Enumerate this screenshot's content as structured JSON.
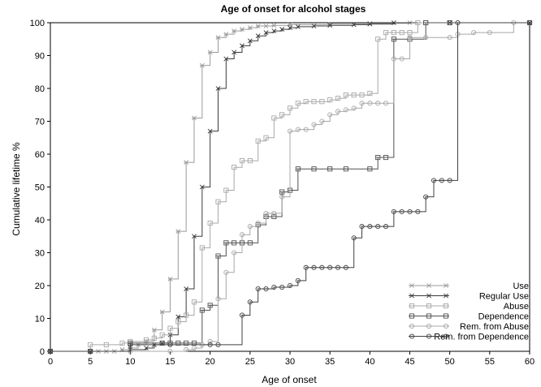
{
  "chart_data": {
    "type": "line",
    "step": true,
    "title": "Age of onset for alcohol stages",
    "xlabel": "Age of onset",
    "ylabel": "Cumulative lifetime %",
    "xlim": [
      0,
      60
    ],
    "ylim": [
      0,
      100
    ],
    "xticks": [
      0,
      5,
      10,
      15,
      20,
      25,
      30,
      35,
      40,
      45,
      50,
      55,
      60
    ],
    "yticks": [
      0,
      10,
      20,
      30,
      40,
      50,
      60,
      70,
      80,
      90,
      100
    ],
    "grid": false,
    "legend_position": "bottom-right",
    "series": [
      {
        "name": "Use",
        "marker": "star",
        "color": "#9a9a9a",
        "x": [
          0,
          5,
          6,
          7,
          8,
          9,
          10,
          11,
          12,
          13,
          14,
          15,
          16,
          17,
          18,
          19,
          20,
          21,
          22,
          23,
          24,
          25,
          26,
          27,
          28,
          30,
          35,
          40,
          45,
          50,
          60
        ],
        "y": [
          0,
          0,
          0,
          0,
          0,
          0.5,
          1,
          2,
          3,
          6.5,
          12,
          22,
          36.5,
          57.5,
          71,
          87,
          91,
          95.5,
          96.5,
          97.5,
          98,
          98.5,
          99,
          99,
          99.2,
          99.4,
          99.6,
          99.8,
          100,
          100,
          100
        ]
      },
      {
        "name": "Regular Use",
        "marker": "x",
        "color": "#3a3a3a",
        "x": [
          0,
          5,
          10,
          12,
          13,
          14,
          15,
          16,
          17,
          18,
          19,
          20,
          21,
          22,
          23,
          24,
          25,
          26,
          27,
          28,
          29,
          30,
          31,
          33,
          35,
          38,
          40,
          43,
          50,
          60
        ],
        "y": [
          0,
          0,
          0.5,
          1,
          2,
          2.5,
          5,
          10.5,
          19,
          35,
          50,
          67,
          80,
          89,
          91,
          93,
          94.5,
          96,
          97,
          97.5,
          98,
          98.5,
          98.8,
          99,
          99.2,
          99.4,
          99.6,
          100,
          100,
          100
        ]
      },
      {
        "name": "Abuse",
        "marker": "square",
        "color": "#a8a8a8",
        "x": [
          0,
          5,
          7,
          9,
          10,
          12,
          13,
          14,
          15,
          16,
          17,
          18,
          19,
          20,
          21,
          22,
          23,
          24,
          25,
          26,
          27,
          28,
          29,
          30,
          31,
          32,
          33,
          34,
          35,
          36,
          37,
          38,
          39,
          40,
          41,
          42,
          43,
          44,
          45,
          46,
          47,
          50,
          60
        ],
        "y": [
          0,
          2,
          2,
          2.5,
          3,
          3.5,
          4,
          5,
          7,
          9,
          11,
          15,
          31.5,
          39,
          45.5,
          49,
          56,
          58,
          58,
          64,
          65,
          71,
          72,
          74,
          75.5,
          76,
          76,
          76,
          76.5,
          77,
          78,
          78,
          78,
          78.5,
          95,
          97,
          97,
          97,
          97,
          100,
          100,
          100,
          100
        ]
      },
      {
        "name": "Dependence",
        "marker": "boxplus",
        "color": "#505050",
        "x": [
          0,
          5,
          10,
          14,
          15,
          16,
          17,
          18,
          19,
          20,
          21,
          22,
          23,
          24,
          25,
          26,
          27,
          28,
          29,
          30,
          31,
          33,
          35,
          37,
          40,
          41,
          42,
          43,
          45,
          47,
          50,
          60
        ],
        "y": [
          0,
          0,
          2.5,
          2.5,
          2.5,
          2.5,
          2.5,
          2.5,
          12.5,
          14,
          29,
          33,
          33,
          33,
          33,
          38.5,
          41,
          41,
          48.5,
          49,
          55.5,
          55.5,
          55.5,
          55.5,
          55.5,
          59,
          59,
          95,
          95,
          100,
          100,
          100
        ]
      },
      {
        "name": "Rem. from Abuse",
        "marker": "circle",
        "color": "#a8a8a8",
        "x": [
          0,
          5,
          10,
          15,
          17,
          18,
          19,
          20,
          21,
          22,
          23,
          24,
          25,
          26,
          27,
          28,
          29,
          30,
          31,
          32,
          33,
          34,
          35,
          36,
          37,
          38,
          39,
          40,
          41,
          42,
          43,
          44,
          45,
          47,
          50,
          51,
          53,
          55,
          58,
          60
        ],
        "y": [
          0,
          0,
          0,
          0,
          0.5,
          1,
          2,
          3,
          16,
          24,
          30,
          35.5,
          38,
          39,
          42,
          42,
          47,
          67,
          67.5,
          67.5,
          69,
          70,
          72,
          73,
          73.5,
          74,
          75.5,
          75.5,
          75.5,
          75.5,
          89,
          89,
          95.5,
          95.5,
          95.5,
          96.5,
          97,
          97,
          100,
          100
        ]
      },
      {
        "name": "Rem. from Dependence",
        "marker": "circle-dot",
        "color": "#404040",
        "x": [
          0,
          5,
          10,
          15,
          20,
          21,
          24,
          25,
          26,
          27,
          28,
          29,
          30,
          31,
          32,
          33,
          34,
          35,
          36,
          37,
          38,
          39,
          40,
          41,
          42,
          43,
          44,
          45,
          46,
          47,
          48,
          49,
          50,
          51,
          60
        ],
        "y": [
          0,
          0,
          2,
          2,
          2,
          2,
          11,
          15,
          19,
          19,
          19.5,
          19.5,
          20,
          21.5,
          25.5,
          25.5,
          25.5,
          25.5,
          25.5,
          25.5,
          34.5,
          38,
          38,
          38,
          38,
          42.5,
          42.5,
          42.5,
          42.5,
          47,
          52,
          52,
          52,
          100,
          100
        ]
      }
    ]
  }
}
